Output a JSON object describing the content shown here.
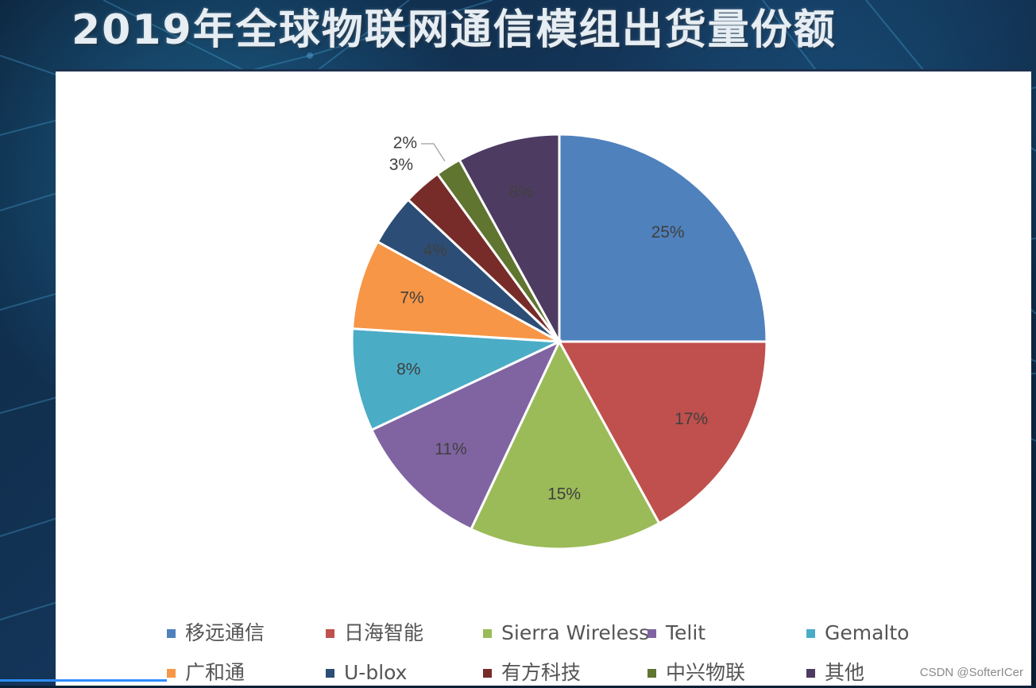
{
  "slide": {
    "title": "2019年全球物联网通信模组出货量份额"
  },
  "watermark": "CSDN @SofterICer",
  "colors": {
    "slide_background": "#0b2036",
    "panel_background": "#ffffff",
    "title_text": "#e6edf3",
    "label_text": "#404040",
    "legend_text": "#555555"
  },
  "chart_data": {
    "type": "pie",
    "title": "",
    "legend_position": "bottom",
    "slices": [
      {
        "name": "移远通信",
        "value": 25,
        "label": "25%",
        "color": "#4f81bd"
      },
      {
        "name": "日海智能",
        "value": 17,
        "label": "17%",
        "color": "#c0504d"
      },
      {
        "name": "Sierra Wireless",
        "value": 15,
        "label": "15%",
        "color": "#9bbb59"
      },
      {
        "name": "Telit",
        "value": 11,
        "label": "11%",
        "color": "#8064a2"
      },
      {
        "name": "Gemalto",
        "value": 8,
        "label": "8%",
        "color": "#4bacc6"
      },
      {
        "name": "广和通",
        "value": 7,
        "label": "7%",
        "color": "#f79646"
      },
      {
        "name": "U-blox",
        "value": 4,
        "label": "4%",
        "color": "#2c4d75"
      },
      {
        "name": "有方科技",
        "value": 3,
        "label": "3%",
        "color": "#772c2a"
      },
      {
        "name": "中兴物联",
        "value": 2,
        "label": "2%",
        "color": "#5f7530"
      },
      {
        "name": "其他",
        "value": 8,
        "label": "8%",
        "color": "#4d3b62"
      }
    ]
  }
}
